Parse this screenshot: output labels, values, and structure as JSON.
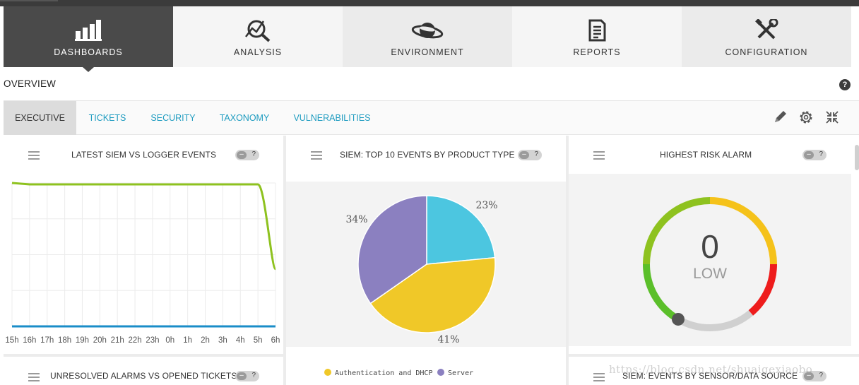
{
  "nav": {
    "tabs": [
      {
        "label": "DASHBOARDS",
        "icon": "bar-chart-icon",
        "active": true
      },
      {
        "label": "ANALYSIS",
        "icon": "magnifier-chart-icon",
        "active": false
      },
      {
        "label": "ENVIRONMENT",
        "icon": "planet-icon",
        "active": false
      },
      {
        "label": "REPORTS",
        "icon": "document-icon",
        "active": false
      },
      {
        "label": "CONFIGURATION",
        "icon": "tools-icon",
        "active": false
      }
    ]
  },
  "overview": {
    "title": "OVERVIEW",
    "help": "?"
  },
  "subnav": {
    "tabs": [
      {
        "label": "EXECUTIVE",
        "active": true
      },
      {
        "label": "TICKETS",
        "active": false
      },
      {
        "label": "SECURITY",
        "active": false
      },
      {
        "label": "TAXONOMY",
        "active": false
      },
      {
        "label": "VULNERABILITIES",
        "active": false
      }
    ],
    "tools": [
      "pencil-icon",
      "gear-icon",
      "collapse-icon"
    ]
  },
  "panels": {
    "logger": {
      "title": "LATEST SIEM VS LOGGER EVENTS"
    },
    "pie": {
      "title": "SIEM: TOP 10 EVENTS BY PRODUCT TYPE"
    },
    "risk": {
      "title": "HIGHEST RISK ALARM",
      "value": "0",
      "level": "LOW"
    },
    "alarms": {
      "title": "UNRESOLVED ALARMS VS OPENED TICKETS"
    },
    "sensor": {
      "title": "SIEM: EVENTS BY SENSOR/DATA SOURCE"
    },
    "toggle": {
      "minus": "–",
      "help": "?"
    }
  },
  "chart_data": [
    {
      "type": "line",
      "x": [
        "15h",
        "16h",
        "17h",
        "18h",
        "19h",
        "20h",
        "21h",
        "22h",
        "23h",
        "0h",
        "1h",
        "2h",
        "3h",
        "4h",
        "5h",
        "6h"
      ],
      "series": [
        {
          "color": "#8ec21f",
          "values": [
            100,
            99,
            99,
            99,
            99,
            99,
            99,
            99,
            99,
            99,
            99,
            99,
            99,
            99,
            99,
            40
          ]
        },
        {
          "color": "#1a8dc8",
          "values": [
            0,
            0,
            0,
            0,
            0,
            0,
            0,
            0,
            0,
            0,
            0,
            0,
            0,
            0,
            0,
            0
          ]
        }
      ],
      "grid": true
    },
    {
      "type": "pie",
      "slices": [
        {
          "label": "",
          "value": 23,
          "display": "23%",
          "color": "#4cc6e0"
        },
        {
          "label": "Authentication and DHCP",
          "value": 41,
          "display": "41%",
          "color": "#f0c828"
        },
        {
          "label": "Server",
          "value": 34,
          "display": "34%",
          "color": "#8b80c0"
        }
      ],
      "legend": [
        {
          "label": "Authentication and DHCP",
          "color": "#f0c828"
        },
        {
          "label": "Server",
          "color": "#8b80c0"
        }
      ]
    }
  ],
  "gauge": {
    "value": 0,
    "colors": [
      "#5bbf2a",
      "#8ec21f",
      "#f5c21a",
      "#ee1c1c"
    ],
    "track": "#d0d0d0",
    "needle": "#555555"
  },
  "watermark": "https://blog.csdn.net/shuaigexiaobo"
}
